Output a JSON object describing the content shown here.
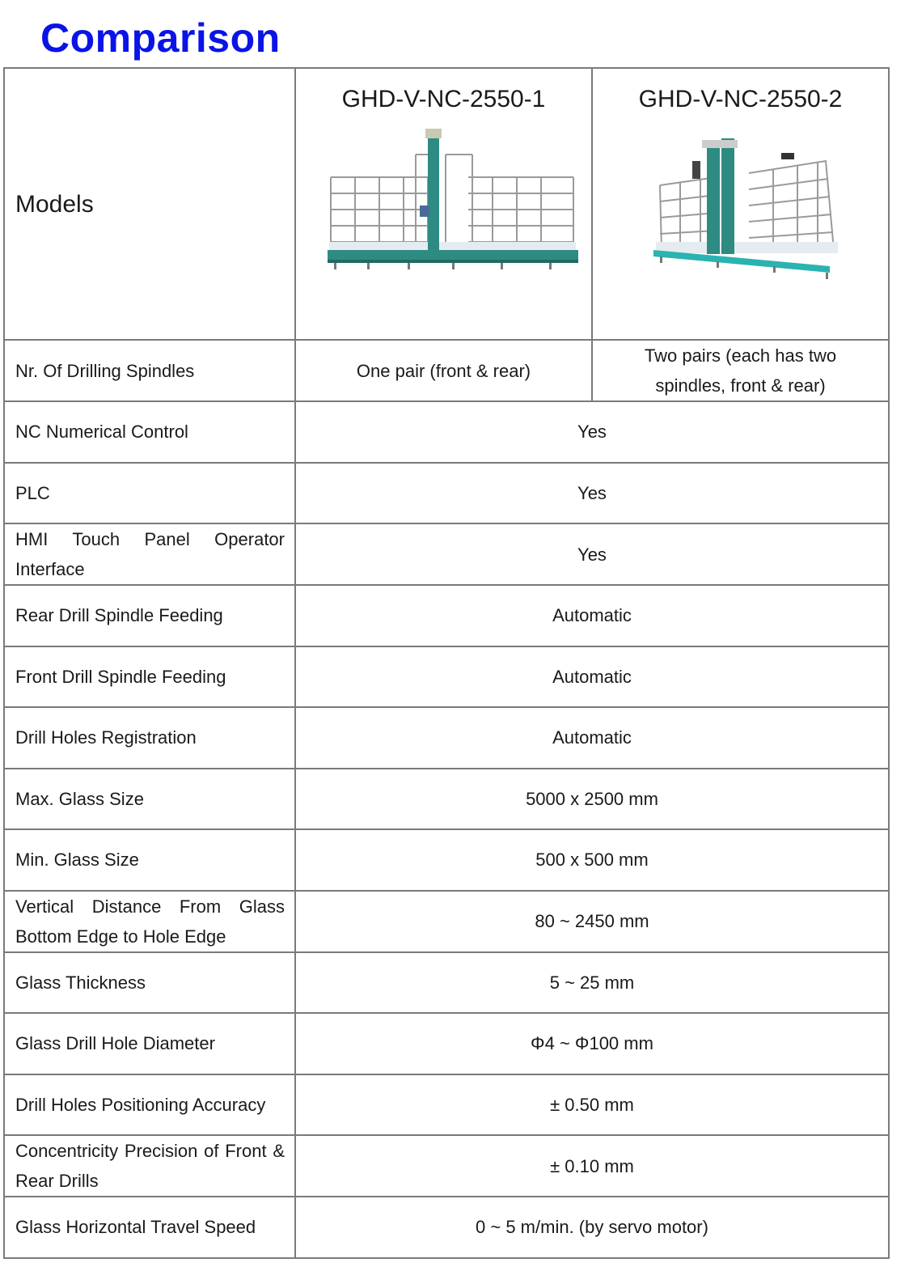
{
  "title": "Comparison",
  "header": {
    "label": "Models",
    "models": [
      "GHD-V-NC-2550-1",
      "GHD-V-NC-2550-2"
    ]
  },
  "rows": [
    {
      "label": "Nr. Of Drilling Spindles",
      "values": [
        "One pair (front & rear)",
        "Two pairs (each has two spindles, front & rear)"
      ]
    },
    {
      "label": "NC Numerical Control",
      "value": "Yes"
    },
    {
      "label": "PLC",
      "value": "Yes"
    },
    {
      "label": "HMI Touch Panel Operator Interface",
      "value": "Yes"
    },
    {
      "label": "Rear Drill Spindle Feeding",
      "value": "Automatic"
    },
    {
      "label": "Front Drill Spindle Feeding",
      "value": "Automatic"
    },
    {
      "label": "Drill Holes Registration",
      "value": "Automatic"
    },
    {
      "label": "Max. Glass Size",
      "value": "5000 x 2500 mm"
    },
    {
      "label": "Min. Glass Size",
      "value": "500 x 500 mm"
    },
    {
      "label": "Vertical Distance From Glass Bottom Edge to Hole Edge",
      "value": "80 ~ 2450 mm"
    },
    {
      "label": "Glass Thickness",
      "value": "5 ~ 25 mm"
    },
    {
      "label": "Glass Drill Hole Diameter",
      "value": "Φ4 ~ Φ100 mm"
    },
    {
      "label": "Drill Holes Positioning Accuracy",
      "value": "± 0.50 mm"
    },
    {
      "label": "Concentricity Precision of Front & Rear Drills",
      "value": "± 0.10 mm"
    },
    {
      "label": "Glass Horizontal Travel Speed",
      "value": "0 ~ 5 m/min. (by servo motor)"
    }
  ],
  "colors": {
    "title": "#0a14e6",
    "border": "#7a7a7a",
    "machine": "#2e8b82"
  }
}
